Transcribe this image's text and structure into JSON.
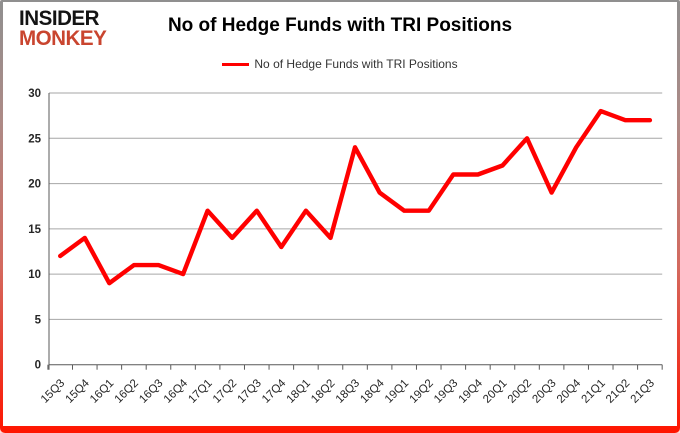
{
  "logo": {
    "line1": "INSIDER",
    "line2": "MONKEY"
  },
  "header": {
    "title": "No of Hedge Funds with TRI Positions"
  },
  "legend": {
    "label": "No of Hedge Funds with TRI Positions"
  },
  "colors": {
    "series_line": "#ff0000",
    "gridline": "#a6a6a6",
    "axis": "#595959",
    "tick_text": "#262626",
    "title_text": "#000000",
    "legend_text": "#333333",
    "logo_black": "#141414",
    "logo_red": "#c9452f",
    "border_glow": "#ff1500"
  },
  "chart_data": {
    "type": "line",
    "title": "No of Hedge Funds with TRI Positions",
    "xlabel": "",
    "ylabel": "",
    "ylim": [
      0,
      30
    ],
    "ytick_step": 5,
    "grid": true,
    "legend_position": "top",
    "categories": [
      "15Q3",
      "15Q4",
      "16Q1",
      "16Q2",
      "16Q3",
      "16Q4",
      "17Q1",
      "17Q2",
      "17Q3",
      "17Q4",
      "18Q1",
      "18Q2",
      "18Q3",
      "18Q4",
      "19Q1",
      "19Q2",
      "19Q3",
      "19Q4",
      "20Q1",
      "20Q2",
      "20Q3",
      "20Q4",
      "21Q1",
      "21Q2",
      "21Q3"
    ],
    "series": [
      {
        "name": "No of Hedge Funds with TRI Positions",
        "color": "#ff0000",
        "values": [
          12,
          14,
          9,
          11,
          11,
          10,
          17,
          14,
          17,
          13,
          17,
          14,
          24,
          19,
          17,
          17,
          21,
          21,
          22,
          25,
          19,
          24,
          28,
          27,
          27
        ]
      }
    ]
  }
}
